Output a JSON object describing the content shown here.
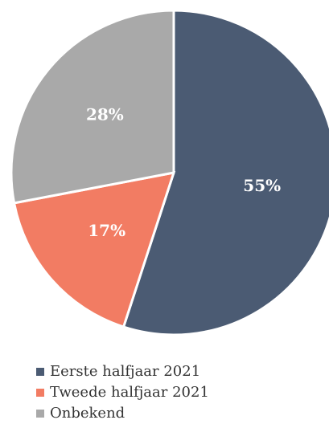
{
  "chart_data": {
    "type": "pie",
    "categories": [
      "Eerste halfjaar 2021",
      "Tweede halfjaar 2021",
      "Onbekend"
    ],
    "values": [
      55,
      17,
      28
    ],
    "value_labels": [
      "55%",
      "17%",
      "28%"
    ],
    "colors": [
      "#4b5b73",
      "#f27c63",
      "#a9a9a9"
    ]
  }
}
